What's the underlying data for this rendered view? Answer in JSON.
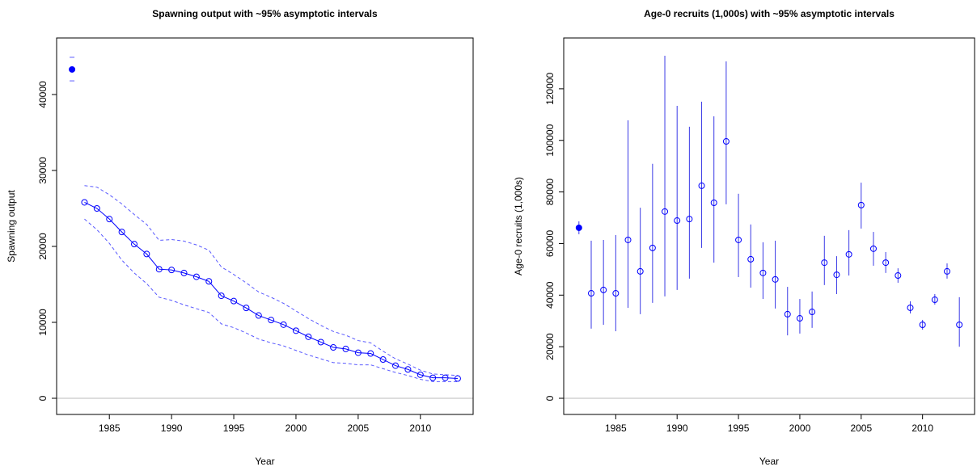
{
  "chart_data": [
    {
      "type": "line",
      "title": "Spawning output with ~95% asymptotic intervals",
      "xlabel": "Year",
      "ylabel": "Spawning output",
      "xlim": [
        1980.76,
        2014.24
      ],
      "ylim": [
        -2128,
        47447
      ],
      "xticks": [
        1985,
        1990,
        1995,
        2000,
        2005,
        2010
      ],
      "yticks": [
        0,
        10000,
        20000,
        30000,
        40000
      ],
      "hline": 0,
      "hline_color": "#bbbbbb",
      "interval_color": "#5a5aff",
      "series": [
        {
          "color": "#0000ff",
          "marker": "filled",
          "line": false,
          "x": [
            1982
          ],
          "values": [
            43300
          ],
          "lower": [
            41800
          ],
          "upper": [
            44900
          ]
        },
        {
          "color": "#0000ff",
          "marker": "open",
          "line": true,
          "x": [
            1983,
            1984,
            1985,
            1986,
            1987,
            1988,
            1989,
            1990,
            1991,
            1992,
            1993,
            1994,
            1995,
            1996,
            1997,
            1998,
            1999,
            2000,
            2001,
            2002,
            2003,
            2004,
            2005,
            2006,
            2007,
            2008,
            2009,
            2010,
            2011,
            2012,
            2013
          ],
          "values": [
            25800,
            25000,
            23600,
            21900,
            20300,
            19000,
            17000,
            16900,
            16500,
            16000,
            15400,
            13500,
            12800,
            11900,
            10900,
            10300,
            9700,
            8900,
            8100,
            7400,
            6700,
            6500,
            6000,
            5900,
            5100,
            4300,
            3800,
            3100,
            2700,
            2700,
            2600
          ],
          "lower": [
            23600,
            22200,
            20400,
            18200,
            16500,
            15100,
            13300,
            12900,
            12300,
            11800,
            11300,
            9800,
            9300,
            8600,
            7800,
            7300,
            6900,
            6300,
            5700,
            5200,
            4700,
            4600,
            4400,
            4400,
            3900,
            3400,
            3000,
            2500,
            2200,
            2200,
            2200
          ],
          "upper": [
            28000,
            27800,
            26800,
            25600,
            24200,
            22900,
            20800,
            20900,
            20700,
            20200,
            19500,
            17300,
            16300,
            15200,
            14000,
            13300,
            12500,
            11500,
            10500,
            9600,
            8800,
            8300,
            7600,
            7300,
            6200,
            5200,
            4500,
            3700,
            3200,
            3100,
            3000
          ]
        }
      ]
    },
    {
      "type": "errorbar",
      "title": "Age-0 recruits (1,000s) with ~95% asymptotic intervals",
      "xlabel": "Year",
      "ylabel": "Age-0 recruits (1,000s)",
      "xlim": [
        1980.76,
        2014.24
      ],
      "ylim": [
        -6265,
        139700
      ],
      "xticks": [
        1985,
        1990,
        1995,
        2000,
        2005,
        2010
      ],
      "yticks": [
        0,
        20000,
        40000,
        60000,
        80000,
        100000,
        120000
      ],
      "hline": 0,
      "hline_color": "#bbbbbb",
      "interval_color": "#3a3ae6",
      "series": [
        {
          "color": "#0000ff",
          "marker": "filled",
          "x": [
            1982
          ],
          "values": [
            66100
          ],
          "lower": [
            63600
          ],
          "upper": [
            68600
          ]
        },
        {
          "color": "#0000ff",
          "marker": "open",
          "x": [
            1983,
            1984,
            1985,
            1986,
            1987,
            1988,
            1989,
            1990,
            1991,
            1992,
            1993,
            1994,
            1995,
            1996,
            1997,
            1998,
            1999,
            2000,
            2001,
            2002,
            2003,
            2004,
            2005,
            2006,
            2007,
            2008,
            2009,
            2010,
            2011,
            2012,
            2013
          ],
          "values": [
            40700,
            42000,
            40700,
            61400,
            49200,
            58300,
            72400,
            68900,
            69500,
            82400,
            75800,
            99600,
            61400,
            53900,
            48600,
            46100,
            32600,
            31000,
            33500,
            52600,
            47900,
            55800,
            74900,
            58000,
            52600,
            47600,
            35100,
            28500,
            38200,
            49200,
            28500
          ],
          "lower": [
            27000,
            28500,
            26000,
            35100,
            32600,
            37000,
            39500,
            42000,
            46400,
            58300,
            52600,
            75200,
            47000,
            42900,
            38500,
            34800,
            24400,
            25100,
            27300,
            43900,
            40400,
            47600,
            65800,
            51400,
            48600,
            44800,
            32900,
            26600,
            36300,
            46400,
            20000
          ],
          "upper": [
            61100,
            61400,
            63300,
            107800,
            73900,
            90900,
            132800,
            113400,
            105300,
            115000,
            109300,
            130600,
            79300,
            67400,
            60500,
            61100,
            43200,
            38500,
            41400,
            63000,
            55100,
            65200,
            83600,
            64500,
            56700,
            50400,
            37600,
            30400,
            40400,
            52300,
            39200
          ]
        }
      ]
    }
  ]
}
